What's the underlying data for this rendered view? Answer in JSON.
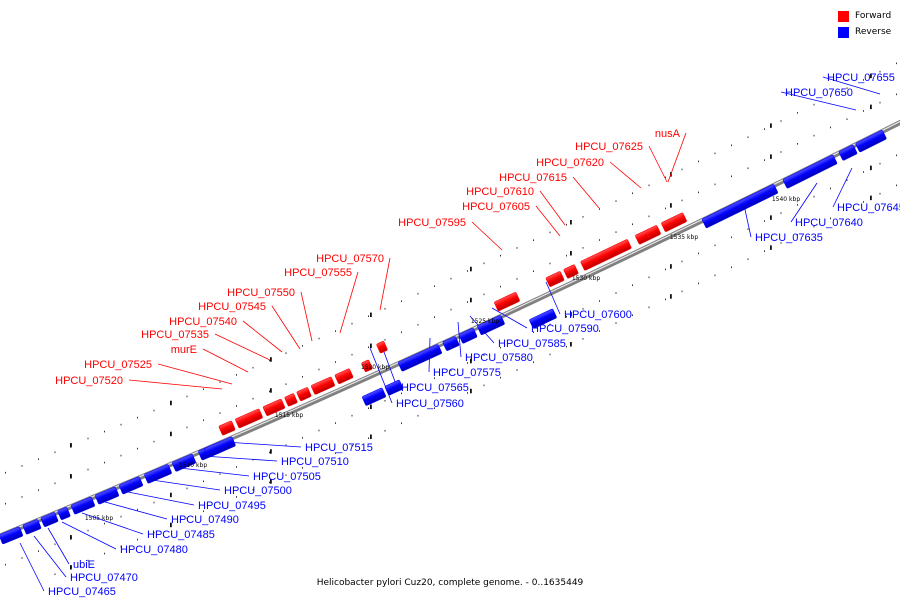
{
  "legend": {
    "forward_label": "Forward",
    "reverse_label": "Reverse",
    "forward_color": "#ff0000",
    "reverse_color": "#0000ff"
  },
  "caption": "Helicobacter pylori Cuz20, complete genome. - 0..1635449",
  "scale_labels": [
    "1505 kbp",
    "1510 kbp",
    "1515 kbp",
    "1520 kbp",
    "1525 kbp",
    "1530 kbp",
    "1535 kbp",
    "1540 kbp"
  ],
  "genes": [
    {
      "name": "HPCU_07465",
      "strand": "reverse"
    },
    {
      "name": "HPCU_07470",
      "strand": "reverse"
    },
    {
      "name": "ubiE",
      "strand": "reverse"
    },
    {
      "name": "HPCU_07480",
      "strand": "reverse"
    },
    {
      "name": "HPCU_07485",
      "strand": "reverse"
    },
    {
      "name": "HPCU_07490",
      "strand": "reverse"
    },
    {
      "name": "HPCU_07495",
      "strand": "reverse"
    },
    {
      "name": "HPCU_07500",
      "strand": "reverse"
    },
    {
      "name": "HPCU_07505",
      "strand": "reverse"
    },
    {
      "name": "HPCU_07510",
      "strand": "reverse"
    },
    {
      "name": "HPCU_07515",
      "strand": "reverse"
    },
    {
      "name": "HPCU_07520",
      "strand": "forward"
    },
    {
      "name": "HPCU_07525",
      "strand": "forward"
    },
    {
      "name": "murE",
      "strand": "forward"
    },
    {
      "name": "HPCU_07535",
      "strand": "forward"
    },
    {
      "name": "HPCU_07540",
      "strand": "forward"
    },
    {
      "name": "HPCU_07545",
      "strand": "forward"
    },
    {
      "name": "HPCU_07550",
      "strand": "forward"
    },
    {
      "name": "HPCU_07555",
      "strand": "forward"
    },
    {
      "name": "HPCU_07560",
      "strand": "reverse"
    },
    {
      "name": "HPCU_07565",
      "strand": "reverse"
    },
    {
      "name": "HPCU_07570",
      "strand": "forward"
    },
    {
      "name": "HPCU_07575",
      "strand": "reverse"
    },
    {
      "name": "HPCU_07580",
      "strand": "reverse"
    },
    {
      "name": "HPCU_07585",
      "strand": "reverse"
    },
    {
      "name": "HPCU_07590",
      "strand": "reverse"
    },
    {
      "name": "HPCU_07595",
      "strand": "forward"
    },
    {
      "name": "HPCU_07600",
      "strand": "reverse"
    },
    {
      "name": "HPCU_07605",
      "strand": "forward"
    },
    {
      "name": "HPCU_07610",
      "strand": "forward"
    },
    {
      "name": "HPCU_07615",
      "strand": "forward"
    },
    {
      "name": "HPCU_07620",
      "strand": "forward"
    },
    {
      "name": "HPCU_07625",
      "strand": "forward"
    },
    {
      "name": "nusA",
      "strand": "forward"
    },
    {
      "name": "HPCU_07635",
      "strand": "reverse"
    },
    {
      "name": "HPCU_07640",
      "strand": "reverse"
    },
    {
      "name": "HPCU_07645",
      "strand": "reverse"
    },
    {
      "name": "HPCU_07650",
      "strand": "reverse"
    },
    {
      "name": "HPCU_07655",
      "strand": "reverse"
    }
  ]
}
